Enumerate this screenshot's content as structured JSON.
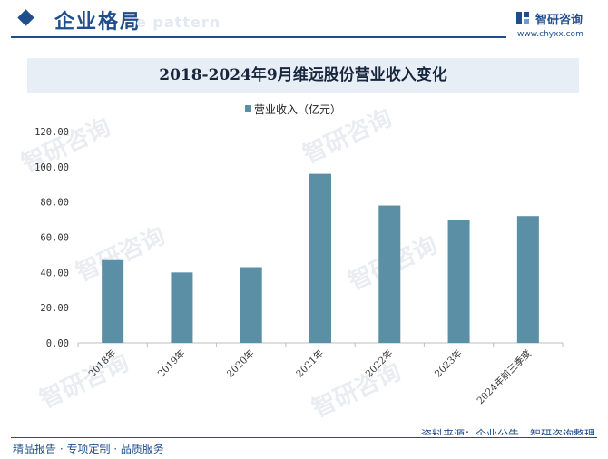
{
  "header": {
    "title": "企业格局",
    "ghost_text": "e pattern",
    "brand_name": "智研咨询",
    "brand_url": "www.chyxx.com"
  },
  "watermark": "智研咨询",
  "source": "资料来源：企业公告、智研咨询整理",
  "footer": "精品报告 · 专项定制 · 品质服务",
  "colors": {
    "bar": "#5b8fa6",
    "brand": "#1f4e8c",
    "title_band": "#e8eef6"
  },
  "chart_data": {
    "type": "bar",
    "title": "2018-2024年9月维远股份营业收入变化",
    "categories": [
      "2018年",
      "2019年",
      "2020年",
      "2021年",
      "2022年",
      "2023年",
      "2024年前三季度"
    ],
    "series": [
      {
        "name": "营业收入（亿元）",
        "values": [
          47.0,
          40.0,
          43.0,
          96.0,
          78.0,
          70.0,
          72.0
        ]
      }
    ],
    "ylim": [
      0,
      120
    ],
    "yticks": [
      "120.00",
      "100.00",
      "80.00",
      "60.00",
      "40.00",
      "20.00",
      "0.00"
    ],
    "ytick_values": [
      120,
      100,
      80,
      60,
      40,
      20,
      0
    ],
    "legend_position": "top-center",
    "grid": false
  }
}
